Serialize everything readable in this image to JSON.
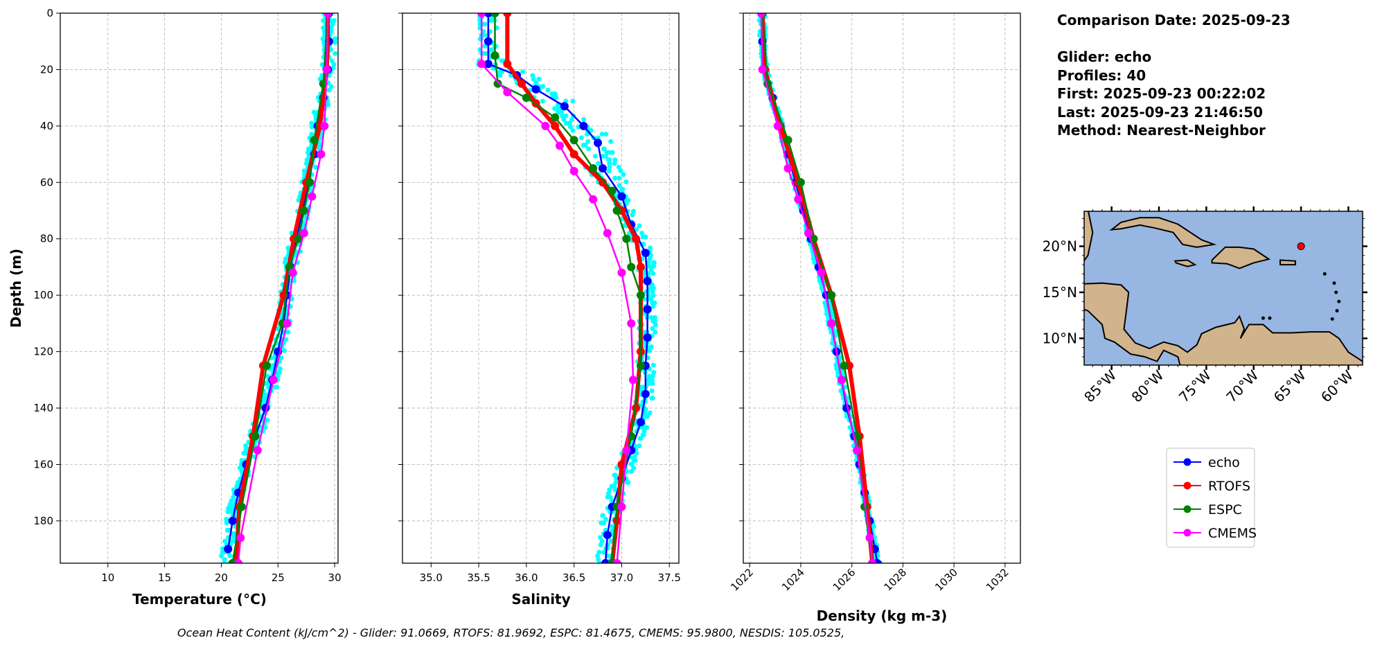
{
  "info": {
    "comparison_date": "Comparison Date: 2025-09-23",
    "glider": "Glider: echo",
    "profiles": "Profiles: 40",
    "first": "First: 2025-09-23 00:22:02",
    "last": "Last: 2025-09-23 21:46:50",
    "method": "Method: Nearest-Neighbor"
  },
  "caption": "Ocean Heat Content (kJ/cm^2) - Glider: 91.0669,  RTOFS: 81.9692,  ESPC: 81.4675,  CMEMS: 95.9800,  NESDIS: 105.0525,",
  "colors": {
    "echo": "#0000ff",
    "RTOFS": "#ff0000",
    "ESPC": "#008000",
    "CMEMS": "#ff00ff",
    "glider_raw": "#00ffff",
    "ocean": "#97b6e1",
    "land": "#d2b48c",
    "grid": "#b0b0b0"
  },
  "legend": [
    {
      "name": "echo",
      "color": "#0000ff"
    },
    {
      "name": "RTOFS",
      "color": "#ff0000"
    },
    {
      "name": "ESPC",
      "color": "#008000"
    },
    {
      "name": "CMEMS",
      "color": "#ff00ff"
    }
  ],
  "chart_data": [
    {
      "type": "line",
      "xlabel": "Temperature (°C)",
      "ylabel": "Depth (m)",
      "xlim": [
        5.8,
        30.3
      ],
      "ylim": [
        195,
        0
      ],
      "xticks": [
        "10",
        "15",
        "20",
        "25",
        "30"
      ],
      "yticks": [
        "0",
        "20",
        "40",
        "60",
        "80",
        "100",
        "120",
        "140",
        "160",
        "180"
      ],
      "grid": true,
      "series": [
        {
          "name": "echo",
          "depth": [
            0,
            10,
            20,
            30,
            40,
            50,
            60,
            70,
            80,
            90,
            100,
            110,
            120,
            130,
            140,
            150,
            160,
            170,
            180,
            190
          ],
          "values": [
            29.5,
            29.5,
            29.4,
            29.0,
            28.5,
            28.2,
            27.7,
            27.2,
            26.6,
            26.1,
            25.8,
            25.5,
            25.0,
            24.5,
            23.9,
            23.0,
            22.2,
            21.5,
            21.0,
            20.6
          ]
        },
        {
          "name": "RTOFS",
          "depth": [
            0,
            20,
            40,
            60,
            80,
            100,
            125,
            150,
            175,
            195
          ],
          "values": [
            29.4,
            29.3,
            28.7,
            27.5,
            26.4,
            25.5,
            23.7,
            22.8,
            21.6,
            21.3
          ]
        },
        {
          "name": "ESPC",
          "depth": [
            0,
            25,
            45,
            60,
            70,
            80,
            90,
            110,
            125,
            150,
            175,
            195
          ],
          "values": [
            29.4,
            29.0,
            28.2,
            27.8,
            27.3,
            26.8,
            26.0,
            25.4,
            24.0,
            23.0,
            21.8,
            21.0
          ]
        },
        {
          "name": "CMEMS",
          "depth": [
            0,
            20,
            40,
            50,
            65,
            78,
            92,
            110,
            130,
            155,
            186,
            195
          ],
          "values": [
            29.4,
            29.3,
            29.1,
            28.8,
            28.0,
            27.3,
            26.3,
            25.8,
            24.6,
            23.2,
            21.7,
            21.5
          ]
        }
      ]
    },
    {
      "type": "line",
      "xlabel": "Salinity",
      "xlim": [
        34.7,
        37.6
      ],
      "ylim": [
        195,
        0
      ],
      "xticks": [
        "35.0",
        "35.5",
        "36.0",
        "36.5",
        "37.0",
        "37.5"
      ],
      "grid": true,
      "series": [
        {
          "name": "echo",
          "depth": [
            0,
            10,
            18,
            22,
            27,
            33,
            40,
            46,
            55,
            65,
            75,
            85,
            95,
            105,
            115,
            125,
            135,
            145,
            155,
            165,
            175,
            185,
            195
          ],
          "values": [
            35.6,
            35.6,
            35.6,
            35.9,
            36.1,
            36.4,
            36.6,
            36.75,
            36.8,
            37.0,
            37.1,
            37.25,
            37.27,
            37.27,
            37.27,
            37.25,
            37.25,
            37.2,
            37.1,
            37.0,
            36.9,
            36.85,
            36.83
          ]
        },
        {
          "name": "RTOFS",
          "depth": [
            0,
            18,
            25,
            32,
            40,
            50,
            60,
            70,
            80,
            90,
            120,
            140,
            160,
            180,
            195
          ],
          "values": [
            35.8,
            35.8,
            35.95,
            36.1,
            36.3,
            36.5,
            36.8,
            37.0,
            37.15,
            37.2,
            37.2,
            37.15,
            37.0,
            36.95,
            36.9
          ]
        },
        {
          "name": "ESPC",
          "depth": [
            0,
            15,
            25,
            30,
            37,
            45,
            55,
            63,
            70,
            80,
            90,
            100,
            125,
            150,
            175,
            195
          ],
          "values": [
            35.67,
            35.67,
            35.7,
            36.0,
            36.3,
            36.5,
            36.7,
            36.9,
            36.95,
            37.05,
            37.1,
            37.2,
            37.2,
            37.1,
            36.95,
            36.9
          ]
        },
        {
          "name": "CMEMS",
          "depth": [
            0,
            18,
            28,
            40,
            47,
            56,
            66,
            78,
            92,
            110,
            130,
            155,
            175,
            195
          ],
          "values": [
            35.53,
            35.53,
            35.8,
            36.2,
            36.35,
            36.5,
            36.7,
            36.85,
            37.0,
            37.1,
            37.12,
            37.05,
            37.0,
            36.95
          ]
        }
      ]
    },
    {
      "type": "line",
      "xlabel": "Density (kg m-3)",
      "xlim": [
        1021.75,
        1032.6
      ],
      "ylim": [
        195,
        0
      ],
      "xticks": [
        "1022",
        "1024",
        "1026",
        "1028",
        "1030",
        "1032"
      ],
      "grid": true,
      "series": [
        {
          "name": "echo",
          "depth": [
            0,
            10,
            20,
            30,
            40,
            50,
            60,
            70,
            80,
            90,
            100,
            110,
            120,
            130,
            140,
            150,
            160,
            170,
            180,
            190,
            195
          ],
          "values": [
            1022.5,
            1022.5,
            1022.6,
            1022.9,
            1023.2,
            1023.5,
            1023.8,
            1024.1,
            1024.4,
            1024.7,
            1025.0,
            1025.2,
            1025.4,
            1025.6,
            1025.8,
            1026.1,
            1026.3,
            1026.5,
            1026.7,
            1026.9,
            1027.0
          ]
        },
        {
          "name": "RTOFS",
          "depth": [
            0,
            20,
            40,
            60,
            80,
            100,
            125,
            150,
            175,
            195
          ],
          "values": [
            1022.5,
            1022.6,
            1023.2,
            1023.9,
            1024.5,
            1025.2,
            1025.9,
            1026.3,
            1026.6,
            1026.8
          ]
        },
        {
          "name": "ESPC",
          "depth": [
            0,
            25,
            45,
            60,
            80,
            100,
            125,
            150,
            175,
            195
          ],
          "values": [
            1022.5,
            1022.7,
            1023.5,
            1024.0,
            1024.5,
            1025.2,
            1025.7,
            1026.2,
            1026.5,
            1026.8
          ]
        },
        {
          "name": "CMEMS",
          "depth": [
            0,
            20,
            40,
            55,
            66,
            78,
            92,
            110,
            130,
            155,
            186,
            195
          ],
          "values": [
            1022.45,
            1022.5,
            1023.1,
            1023.5,
            1023.9,
            1024.3,
            1024.8,
            1025.2,
            1025.6,
            1026.2,
            1026.7,
            1026.8
          ]
        }
      ]
    }
  ],
  "map": {
    "lon_ticks": [
      "85°W",
      "80°W",
      "75°W",
      "70°W",
      "65°W",
      "60°W"
    ],
    "lat_ticks": [
      "20°N",
      "15°N",
      "10°N"
    ],
    "glider_position": {
      "lon": -65,
      "lat": 20
    }
  }
}
